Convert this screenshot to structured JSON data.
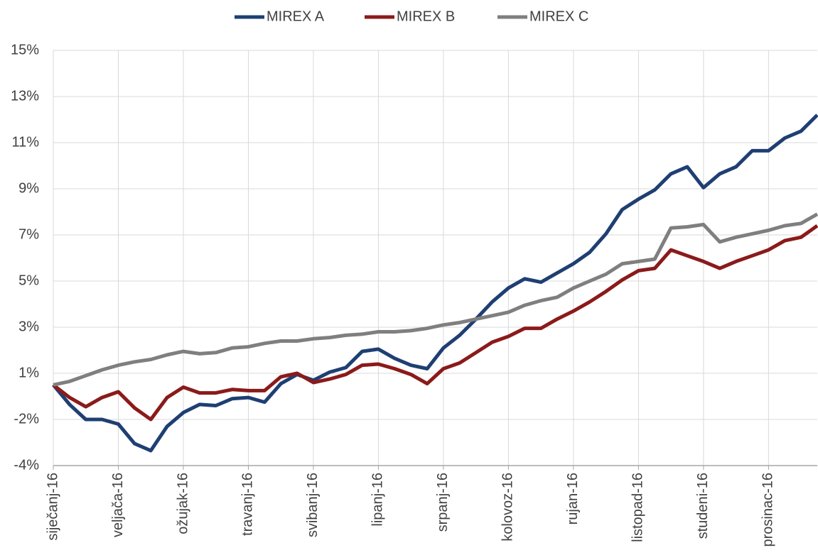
{
  "chart_data": {
    "type": "line",
    "categories": [
      "siječanj-16",
      null,
      null,
      null,
      "veljača-16",
      null,
      null,
      null,
      "ožujak-16",
      null,
      null,
      null,
      "travanj-16",
      null,
      null,
      null,
      "svibanj-16",
      null,
      null,
      null,
      "lipanj-16",
      null,
      null,
      null,
      "srpanj-16",
      null,
      null,
      null,
      "kolovoz-16",
      null,
      null,
      null,
      "rujan-16",
      null,
      null,
      null,
      "listopad-16",
      null,
      null,
      null,
      "studeni-16",
      null,
      null,
      null,
      "prosinac-16",
      null,
      null,
      null
    ],
    "series": [
      {
        "name": "MIREX A",
        "color": "#1f3f73",
        "values": [
          0.0,
          -0.85,
          -1.5,
          -1.5,
          -1.7,
          -2.55,
          -2.85,
          -1.8,
          -1.2,
          -0.85,
          -0.9,
          -0.6,
          -0.55,
          -0.75,
          0.05,
          0.45,
          0.2,
          0.55,
          0.75,
          1.45,
          1.55,
          1.15,
          0.85,
          0.7,
          1.6,
          2.15,
          2.85,
          3.6,
          4.2,
          4.6,
          4.45,
          4.85,
          5.25,
          5.75,
          6.55,
          7.6,
          8.05,
          8.45,
          9.15,
          9.45,
          8.55,
          9.15,
          9.45,
          10.15,
          10.15,
          10.7,
          11.0,
          11.7
        ]
      },
      {
        "name": "MIREX B",
        "color": "#8b1a1a",
        "values": [
          0.0,
          -0.55,
          -0.95,
          -0.55,
          -0.3,
          -1.0,
          -1.5,
          -0.55,
          -0.1,
          -0.35,
          -0.35,
          -0.2,
          -0.25,
          -0.25,
          0.35,
          0.5,
          0.1,
          0.25,
          0.45,
          0.85,
          0.9,
          0.7,
          0.45,
          0.05,
          0.7,
          0.95,
          1.4,
          1.85,
          2.1,
          2.45,
          2.45,
          2.85,
          3.2,
          3.6,
          4.05,
          4.55,
          4.95,
          5.05,
          5.85,
          5.6,
          5.35,
          5.05,
          5.35,
          5.6,
          5.85,
          6.25,
          6.4,
          6.9
        ]
      },
      {
        "name": "MIREX C",
        "color": "#7f7f7f",
        "values": [
          0.0,
          0.15,
          0.4,
          0.65,
          0.85,
          1.0,
          1.1,
          1.3,
          1.45,
          1.35,
          1.4,
          1.6,
          1.65,
          1.8,
          1.9,
          1.9,
          2.0,
          2.05,
          2.15,
          2.2,
          2.3,
          2.3,
          2.35,
          2.45,
          2.6,
          2.7,
          2.85,
          3.0,
          3.15,
          3.45,
          3.65,
          3.8,
          4.2,
          4.5,
          4.8,
          5.25,
          5.35,
          5.45,
          6.8,
          6.85,
          6.95,
          6.2,
          6.4,
          6.55,
          6.7,
          6.9,
          7.0,
          7.4
        ]
      }
    ],
    "ylim": [
      -3.5,
      14.5
    ],
    "yticks": [
      {
        "value": -3.5,
        "label": "-4%"
      },
      {
        "value": -1.5,
        "label": "-2%"
      },
      {
        "value": 0.5,
        "label": "1%"
      },
      {
        "value": 2.5,
        "label": "3%"
      },
      {
        "value": 4.5,
        "label": "5%"
      },
      {
        "value": 6.5,
        "label": "7%"
      },
      {
        "value": 8.5,
        "label": "9%"
      },
      {
        "value": 10.5,
        "label": "11%"
      },
      {
        "value": 12.5,
        "label": "13%"
      },
      {
        "value": 14.5,
        "label": "15%"
      }
    ],
    "grid": true,
    "legend": "top"
  }
}
